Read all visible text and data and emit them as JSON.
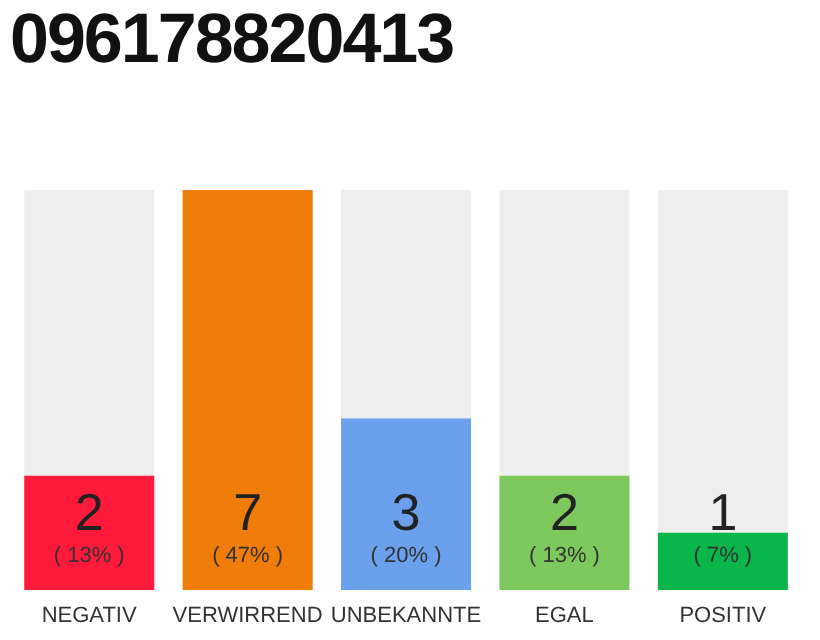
{
  "chart_data": {
    "type": "bar",
    "title": "096178820413",
    "categories": [
      "NEGATIV",
      "VERWIRREND",
      "UNBEKANNTE",
      "EGAL",
      "POSITIV"
    ],
    "values": [
      2,
      7,
      3,
      2,
      1
    ],
    "colors": [
      "#ff1a3c",
      "#f07c0a",
      "#6aa0ec",
      "#7dc95e",
      "#0ab54a"
    ],
    "value_labels": [
      "2\n( 13% )",
      "7\n( 47% )",
      "3\n( 20% )",
      "2\n( 13% )",
      "1\n( 7% )"
    ],
    "grid": false,
    "legend": false
  }
}
